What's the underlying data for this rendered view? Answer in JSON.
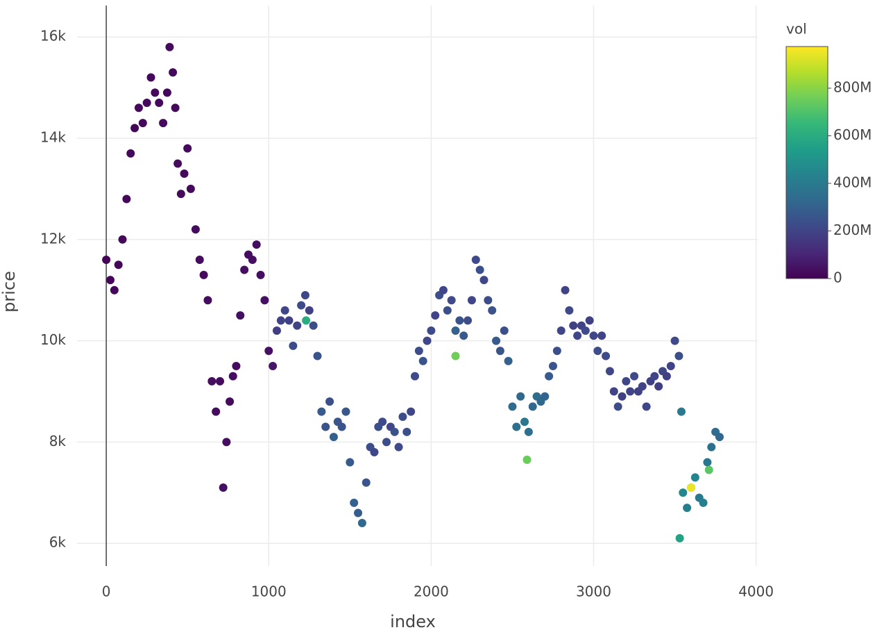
{
  "chart_data": {
    "type": "scatter",
    "x_label": "index",
    "y_label": "price",
    "colorbar_title": "vol",
    "xlim": [
      -180,
      4010
    ],
    "ylim": [
      5550,
      16620
    ],
    "xticks": [
      0,
      1000,
      2000,
      3000,
      4000
    ],
    "yticks": [
      {
        "value": 6000,
        "label": "6k"
      },
      {
        "value": 8000,
        "label": "8k"
      },
      {
        "value": 10000,
        "label": "10k"
      },
      {
        "value": 12000,
        "label": "12k"
      },
      {
        "value": 14000,
        "label": "14k"
      },
      {
        "value": 16000,
        "label": "16k"
      }
    ],
    "grid": true,
    "zeroline": true,
    "clim": [
      0,
      975000000
    ],
    "cticks": [
      {
        "value": 0,
        "label": "0"
      },
      {
        "value": 200000000,
        "label": "200M"
      },
      {
        "value": 400000000,
        "label": "400M"
      },
      {
        "value": 600000000,
        "label": "600M"
      },
      {
        "value": 800000000,
        "label": "800M"
      }
    ],
    "colorscale": [
      "#440154",
      "#482878",
      "#3e4989",
      "#31688e",
      "#26828e",
      "#1f9e89",
      "#35b779",
      "#6ece58",
      "#b5de2b",
      "#fde725"
    ],
    "x": [
      0,
      25,
      50,
      75,
      100,
      125,
      150,
      175,
      200,
      225,
      250,
      275,
      300,
      325,
      350,
      375,
      390,
      410,
      425,
      440,
      460,
      480,
      500,
      520,
      550,
      575,
      600,
      625,
      650,
      675,
      700,
      720,
      740,
      760,
      780,
      800,
      825,
      850,
      875,
      900,
      925,
      950,
      975,
      1000,
      1025,
      1050,
      1075,
      1100,
      1125,
      1150,
      1175,
      1200,
      1225,
      1250,
      1275,
      1300,
      1325,
      1350,
      1375,
      1400,
      1425,
      1450,
      1475,
      1500,
      1525,
      1550,
      1575,
      1600,
      1625,
      1650,
      1675,
      1700,
      1725,
      1750,
      1775,
      1800,
      1825,
      1850,
      1875,
      1900,
      1925,
      1950,
      1975,
      2000,
      2025,
      2050,
      2075,
      2100,
      2125,
      2150,
      2175,
      2200,
      2225,
      2250,
      2275,
      2300,
      2325,
      2350,
      2375,
      2400,
      2425,
      2450,
      2475,
      2500,
      2525,
      2550,
      2575,
      2600,
      2625,
      2650,
      2675,
      2700,
      2725,
      2750,
      2775,
      2800,
      2825,
      2850,
      2875,
      2900,
      2925,
      2950,
      2975,
      3000,
      3025,
      3050,
      3075,
      3100,
      3125,
      3150,
      3175,
      3200,
      3225,
      3250,
      3275,
      3300,
      3325,
      3350,
      3375,
      3400,
      3425,
      3450,
      3475,
      3500,
      3525,
      3540,
      3550,
      3575,
      3600,
      3625,
      3650,
      3675,
      3700,
      3725,
      3750,
      3775,
      2150,
      2590,
      3600,
      3710,
      3530,
      1230
    ],
    "y": [
      11600,
      11200,
      11000,
      11500,
      12000,
      12800,
      13700,
      14200,
      14600,
      14300,
      14700,
      15200,
      14900,
      14700,
      14300,
      14900,
      15800,
      15300,
      14600,
      13500,
      12900,
      13300,
      13800,
      13000,
      12200,
      11600,
      11300,
      10800,
      9200,
      8600,
      9200,
      7100,
      8000,
      8800,
      9300,
      9500,
      10500,
      11400,
      11700,
      11600,
      11900,
      11300,
      10800,
      9800,
      9500,
      10200,
      10400,
      10600,
      10400,
      9900,
      10300,
      10700,
      10900,
      10600,
      10300,
      9700,
      8600,
      8300,
      8800,
      8100,
      8400,
      8300,
      8600,
      7600,
      6800,
      6600,
      6400,
      7200,
      7900,
      7800,
      8300,
      8400,
      8000,
      8300,
      8200,
      7900,
      8500,
      8200,
      8600,
      9300,
      9800,
      9600,
      10000,
      10200,
      10500,
      10900,
      11000,
      10600,
      10800,
      10200,
      10400,
      10100,
      10400,
      10800,
      11600,
      11400,
      11200,
      10800,
      10600,
      10000,
      9800,
      10200,
      9600,
      8700,
      8300,
      8900,
      8400,
      8200,
      8700,
      8900,
      8800,
      8900,
      9300,
      9500,
      9800,
      10200,
      11000,
      10600,
      10300,
      10100,
      10300,
      10200,
      10400,
      10100,
      9800,
      10100,
      9700,
      9400,
      9000,
      8700,
      8900,
      9200,
      9000,
      9300,
      9000,
      9100,
      8700,
      9200,
      9300,
      9100,
      9400,
      9300,
      9500,
      10000,
      9700,
      8600,
      7000,
      6700,
      7100,
      7300,
      6900,
      6800,
      7600,
      7900,
      8200,
      8100,
      9700,
      7650,
      7100,
      7450,
      6100,
      10400
    ],
    "vol": [
      12000000,
      15000000,
      18000000,
      14000000,
      20000000,
      16000000,
      22000000,
      18000000,
      25000000,
      20000000,
      17000000,
      23000000,
      19000000,
      21000000,
      24000000,
      18000000,
      26000000,
      22000000,
      20000000,
      28000000,
      24000000,
      21000000,
      26000000,
      23000000,
      30000000,
      27000000,
      25000000,
      32000000,
      35000000,
      30000000,
      28000000,
      40000000,
      34000000,
      31000000,
      36000000,
      33000000,
      38000000,
      35000000,
      32000000,
      37000000,
      34000000,
      39000000,
      42000000,
      45000000,
      60000000,
      180000000,
      200000000,
      210000000,
      190000000,
      230000000,
      200000000,
      220000000,
      210000000,
      190000000,
      230000000,
      260000000,
      280000000,
      250000000,
      240000000,
      300000000,
      260000000,
      250000000,
      270000000,
      280000000,
      300000000,
      290000000,
      320000000,
      260000000,
      230000000,
      210000000,
      240000000,
      220000000,
      230000000,
      210000000,
      250000000,
      220000000,
      230000000,
      240000000,
      210000000,
      220000000,
      230000000,
      250000000,
      210000000,
      220000000,
      200000000,
      230000000,
      210000000,
      240000000,
      220000000,
      300000000,
      250000000,
      280000000,
      230000000,
      210000000,
      220000000,
      240000000,
      210000000,
      230000000,
      250000000,
      280000000,
      260000000,
      240000000,
      300000000,
      340000000,
      360000000,
      330000000,
      380000000,
      350000000,
      320000000,
      340000000,
      330000000,
      310000000,
      280000000,
      260000000,
      240000000,
      210000000,
      200000000,
      220000000,
      190000000,
      210000000,
      200000000,
      220000000,
      190000000,
      210000000,
      230000000,
      200000000,
      220000000,
      210000000,
      200000000,
      230000000,
      190000000,
      210000000,
      200000000,
      220000000,
      190000000,
      200000000,
      210000000,
      190000000,
      200000000,
      180000000,
      210000000,
      190000000,
      200000000,
      220000000,
      240000000,
      400000000,
      450000000,
      420000000,
      480000000,
      440000000,
      400000000,
      420000000,
      380000000,
      360000000,
      340000000,
      320000000,
      760000000,
      750000000,
      950000000,
      720000000,
      560000000,
      600000000
    ]
  }
}
